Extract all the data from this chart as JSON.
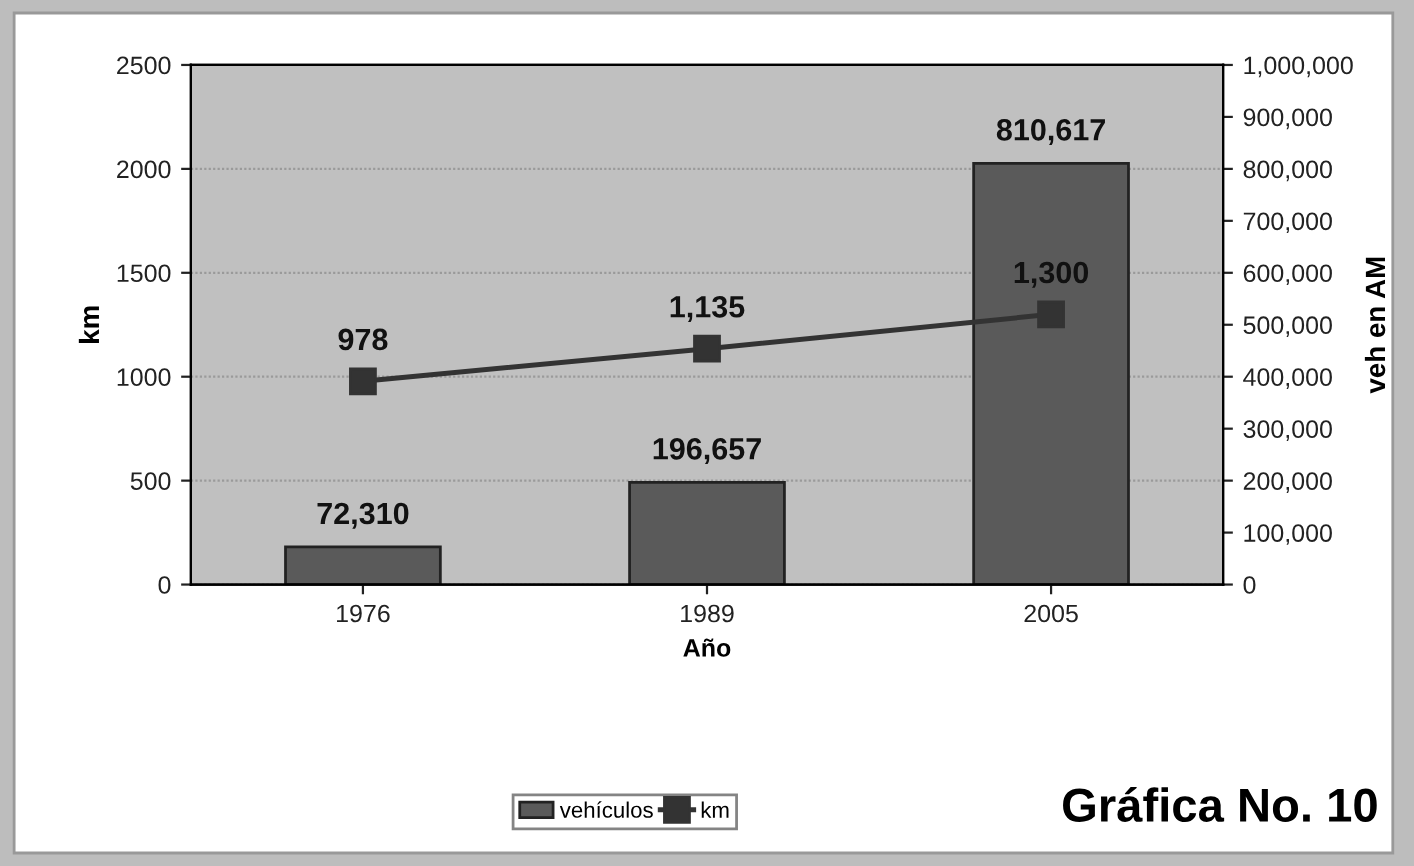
{
  "chart_data": {
    "type": "bar",
    "categories": [
      "1976",
      "1989",
      "2005"
    ],
    "xlabel": "Año",
    "ylabel": "km",
    "y2label": "veh en AM",
    "series": [
      {
        "name": "vehículos",
        "axis": "y2",
        "color": "#5a5a5a",
        "values": [
          72310,
          196657,
          810617
        ],
        "value_labels": [
          "72,310",
          "196,657",
          "810,617"
        ]
      },
      {
        "name": "km",
        "type": "line",
        "axis": "y",
        "color": "#333333",
        "values": [
          978,
          1135,
          1300
        ],
        "value_labels": [
          "978",
          "1,135",
          "1,300"
        ],
        "marker": "square"
      }
    ],
    "ylim": [
      0,
      2500
    ],
    "yticks": [
      0,
      500,
      1000,
      1500,
      2000,
      2500
    ],
    "y2lim": [
      0,
      1000000
    ],
    "y2ticks": [
      {
        "value": 0,
        "label": "0"
      },
      {
        "value": 100000,
        "label": "100,000"
      },
      {
        "value": 200000,
        "label": "200,000"
      },
      {
        "value": 300000,
        "label": "300,000"
      },
      {
        "value": 400000,
        "label": "400,000"
      },
      {
        "value": 500000,
        "label": "500,000"
      },
      {
        "value": 600000,
        "label": "600,000"
      },
      {
        "value": 700000,
        "label": "700,000"
      },
      {
        "value": 800000,
        "label": "800,000"
      },
      {
        "value": 900000,
        "label": "900,000"
      },
      {
        "value": 1000000,
        "label": "1,000,000"
      }
    ],
    "grid": "y",
    "legend": "bottom",
    "annotations": [
      "Gráfica No. 10"
    ]
  }
}
